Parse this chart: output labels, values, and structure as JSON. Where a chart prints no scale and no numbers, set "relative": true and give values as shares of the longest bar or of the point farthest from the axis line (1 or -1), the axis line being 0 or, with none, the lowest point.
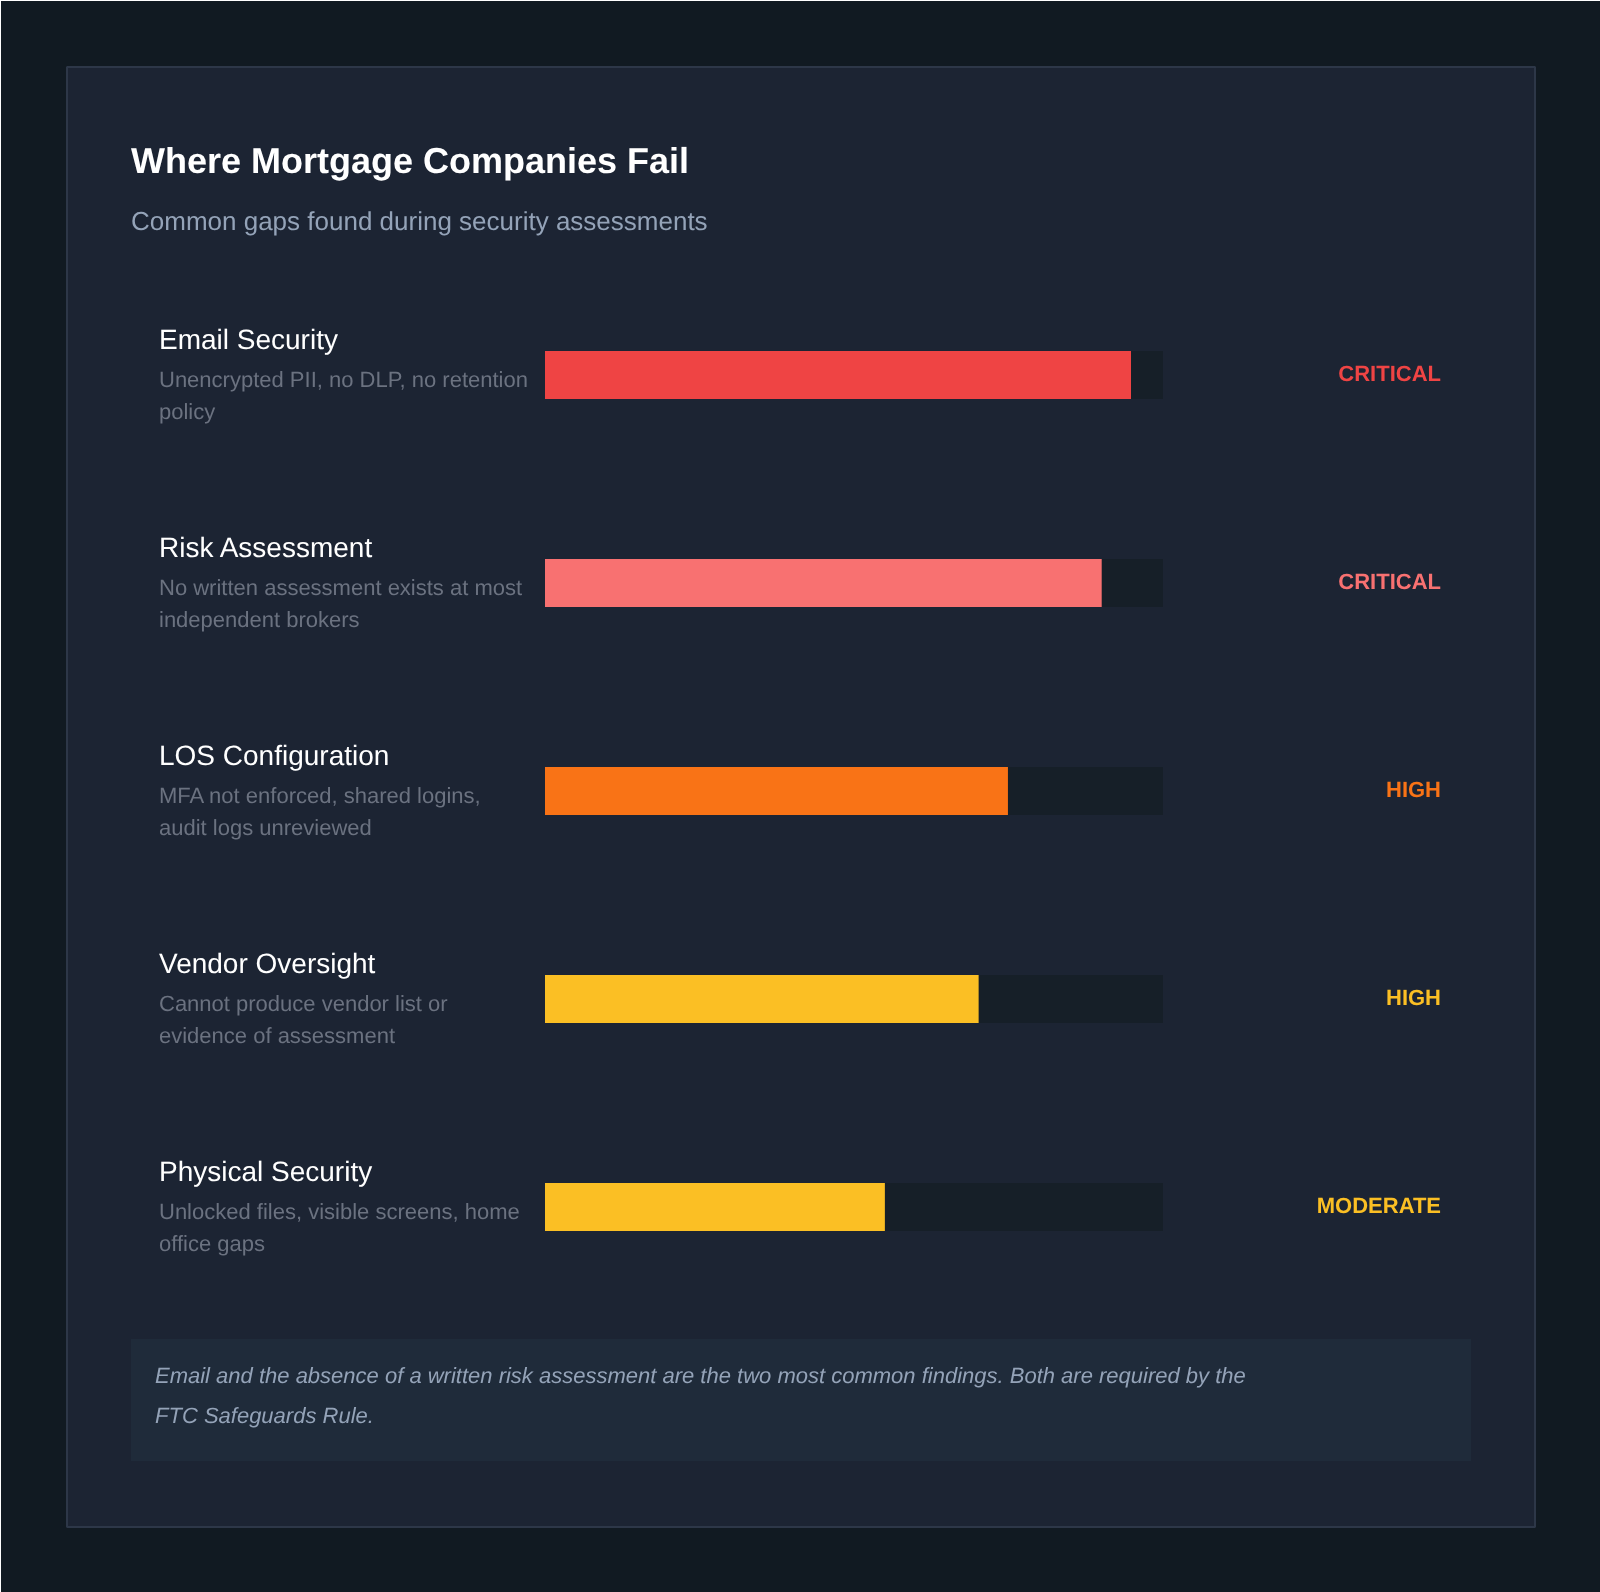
{
  "chart_data": {
    "type": "bar",
    "orientation": "horizontal",
    "relative": true,
    "title": "Where Mortgage Companies Fail",
    "subtitle": "Common gaps found during security assessments",
    "categories": [
      "Email Security",
      "Risk Assessment",
      "LOS Configuration",
      "Vendor Oversight",
      "Physical Security"
    ],
    "values": [
      1,
      0.95,
      0.79,
      0.74,
      0.58
    ],
    "colors": [
      "#ef4444",
      "#f87171",
      "#f97316",
      "#fbbf24",
      "#fbbf24"
    ],
    "annotations": [
      "Unencrypted PII, no DLP, no retention policy",
      "No written assessment exists at most independent brokers",
      "MFA not enforced, shared logins, audit logs unreviewed",
      "Cannot produce vendor list or evidence of assessment",
      "Unlocked files, visible screens, home office gaps",
      "CRITICAL",
      "CRITICAL",
      "HIGH",
      "HIGH",
      "MODERATE",
      "Email and the absence of a written risk assessment are the two most common findings. Both are required by the FTC Safeguards Rule."
    ]
  }
}
